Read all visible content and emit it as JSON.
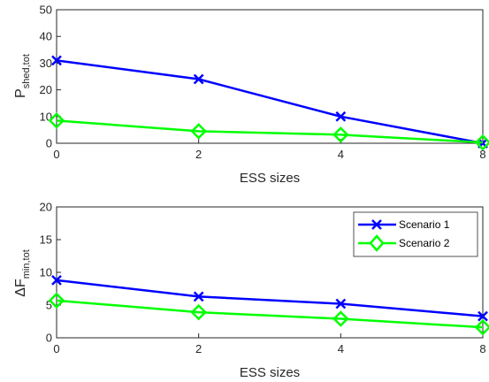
{
  "chart_data": [
    {
      "type": "line",
      "categories": [
        "0",
        "2",
        "4",
        "8"
      ],
      "xlabel": "ESS sizes",
      "ylabel_main": "P",
      "ylabel_sub": "shed,tot",
      "ylim": [
        0,
        50
      ],
      "yticks": [
        "0",
        "10",
        "20",
        "30",
        "40",
        "50"
      ],
      "grid": false,
      "legend": null,
      "series": [
        {
          "name": "Scenario 1",
          "color": "#0000ff",
          "marker": "x",
          "values": [
            31,
            24,
            10,
            0
          ]
        },
        {
          "name": "Scenario 2",
          "color": "#00ff00",
          "marker": "diamond",
          "values": [
            8.5,
            4.5,
            3.2,
            0.3
          ]
        }
      ]
    },
    {
      "type": "line",
      "categories": [
        "0",
        "2",
        "4",
        "8"
      ],
      "xlabel": "ESS sizes",
      "ylabel_main": "ΔF",
      "ylabel_sub": "min,tot",
      "ylim": [
        0,
        20
      ],
      "yticks": [
        "0",
        "5",
        "10",
        "15",
        "20"
      ],
      "grid": false,
      "legend": "top-right",
      "series": [
        {
          "name": "Scenario 1",
          "color": "#0000ff",
          "marker": "x",
          "values": [
            8.8,
            6.3,
            5.2,
            3.3
          ]
        },
        {
          "name": "Scenario 2",
          "color": "#00ff00",
          "marker": "diamond",
          "values": [
            5.7,
            3.9,
            2.9,
            1.6
          ]
        }
      ]
    }
  ]
}
